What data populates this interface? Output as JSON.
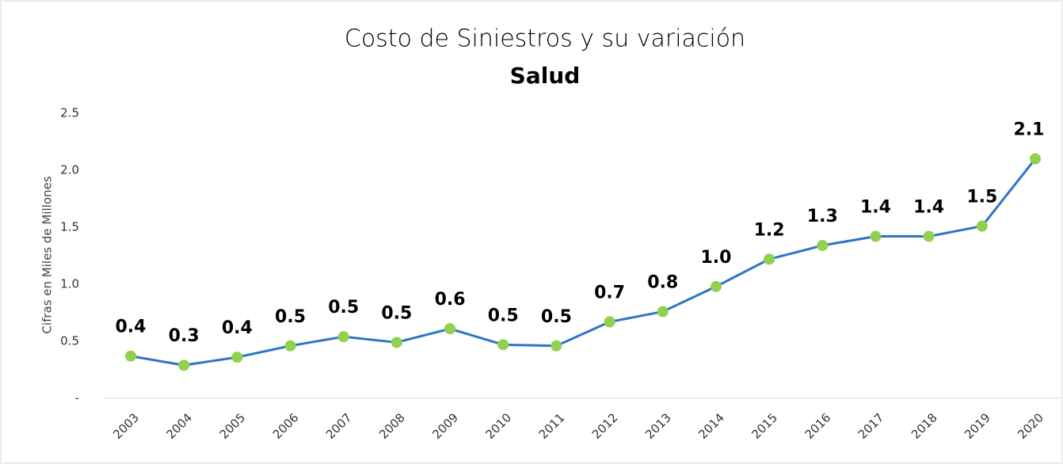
{
  "chart_data": {
    "type": "line",
    "title": "Costo de Siniestros y su variación",
    "subtitle": "Salud",
    "y_axis_label": "Cifras en Miles de Millones",
    "categories": [
      "2003",
      "2004",
      "2005",
      "2006",
      "2007",
      "2008",
      "2009",
      "2010",
      "2011",
      "2012",
      "2013",
      "2014",
      "2015",
      "2016",
      "2017",
      "2018",
      "2019",
      "2020"
    ],
    "series": [
      {
        "name": "Salud",
        "color": "#2e75c6",
        "marker_color": "#92d050",
        "values": [
          0.37,
          0.29,
          0.36,
          0.46,
          0.54,
          0.49,
          0.61,
          0.47,
          0.46,
          0.67,
          0.76,
          0.98,
          1.22,
          1.34,
          1.42,
          1.42,
          1.51,
          2.1
        ],
        "value_labels": [
          "0.4",
          "0.3",
          "0.4",
          "0.5",
          "0.5",
          "0.5",
          "0.6",
          "0.5",
          "0.5",
          "0.7",
          "0.8",
          "1.0",
          "1.2",
          "1.3",
          "1.4",
          "1.4",
          "1.5",
          "2.1"
        ]
      }
    ],
    "ylim": [
      0,
      2.5
    ],
    "yticks": [
      {
        "value": 0,
        "label": "-"
      },
      0.5,
      {
        "value": 1,
        "label": "1.0"
      },
      1.5,
      {
        "value": 2,
        "label": "2.0"
      },
      2.5
    ],
    "grid": false
  }
}
